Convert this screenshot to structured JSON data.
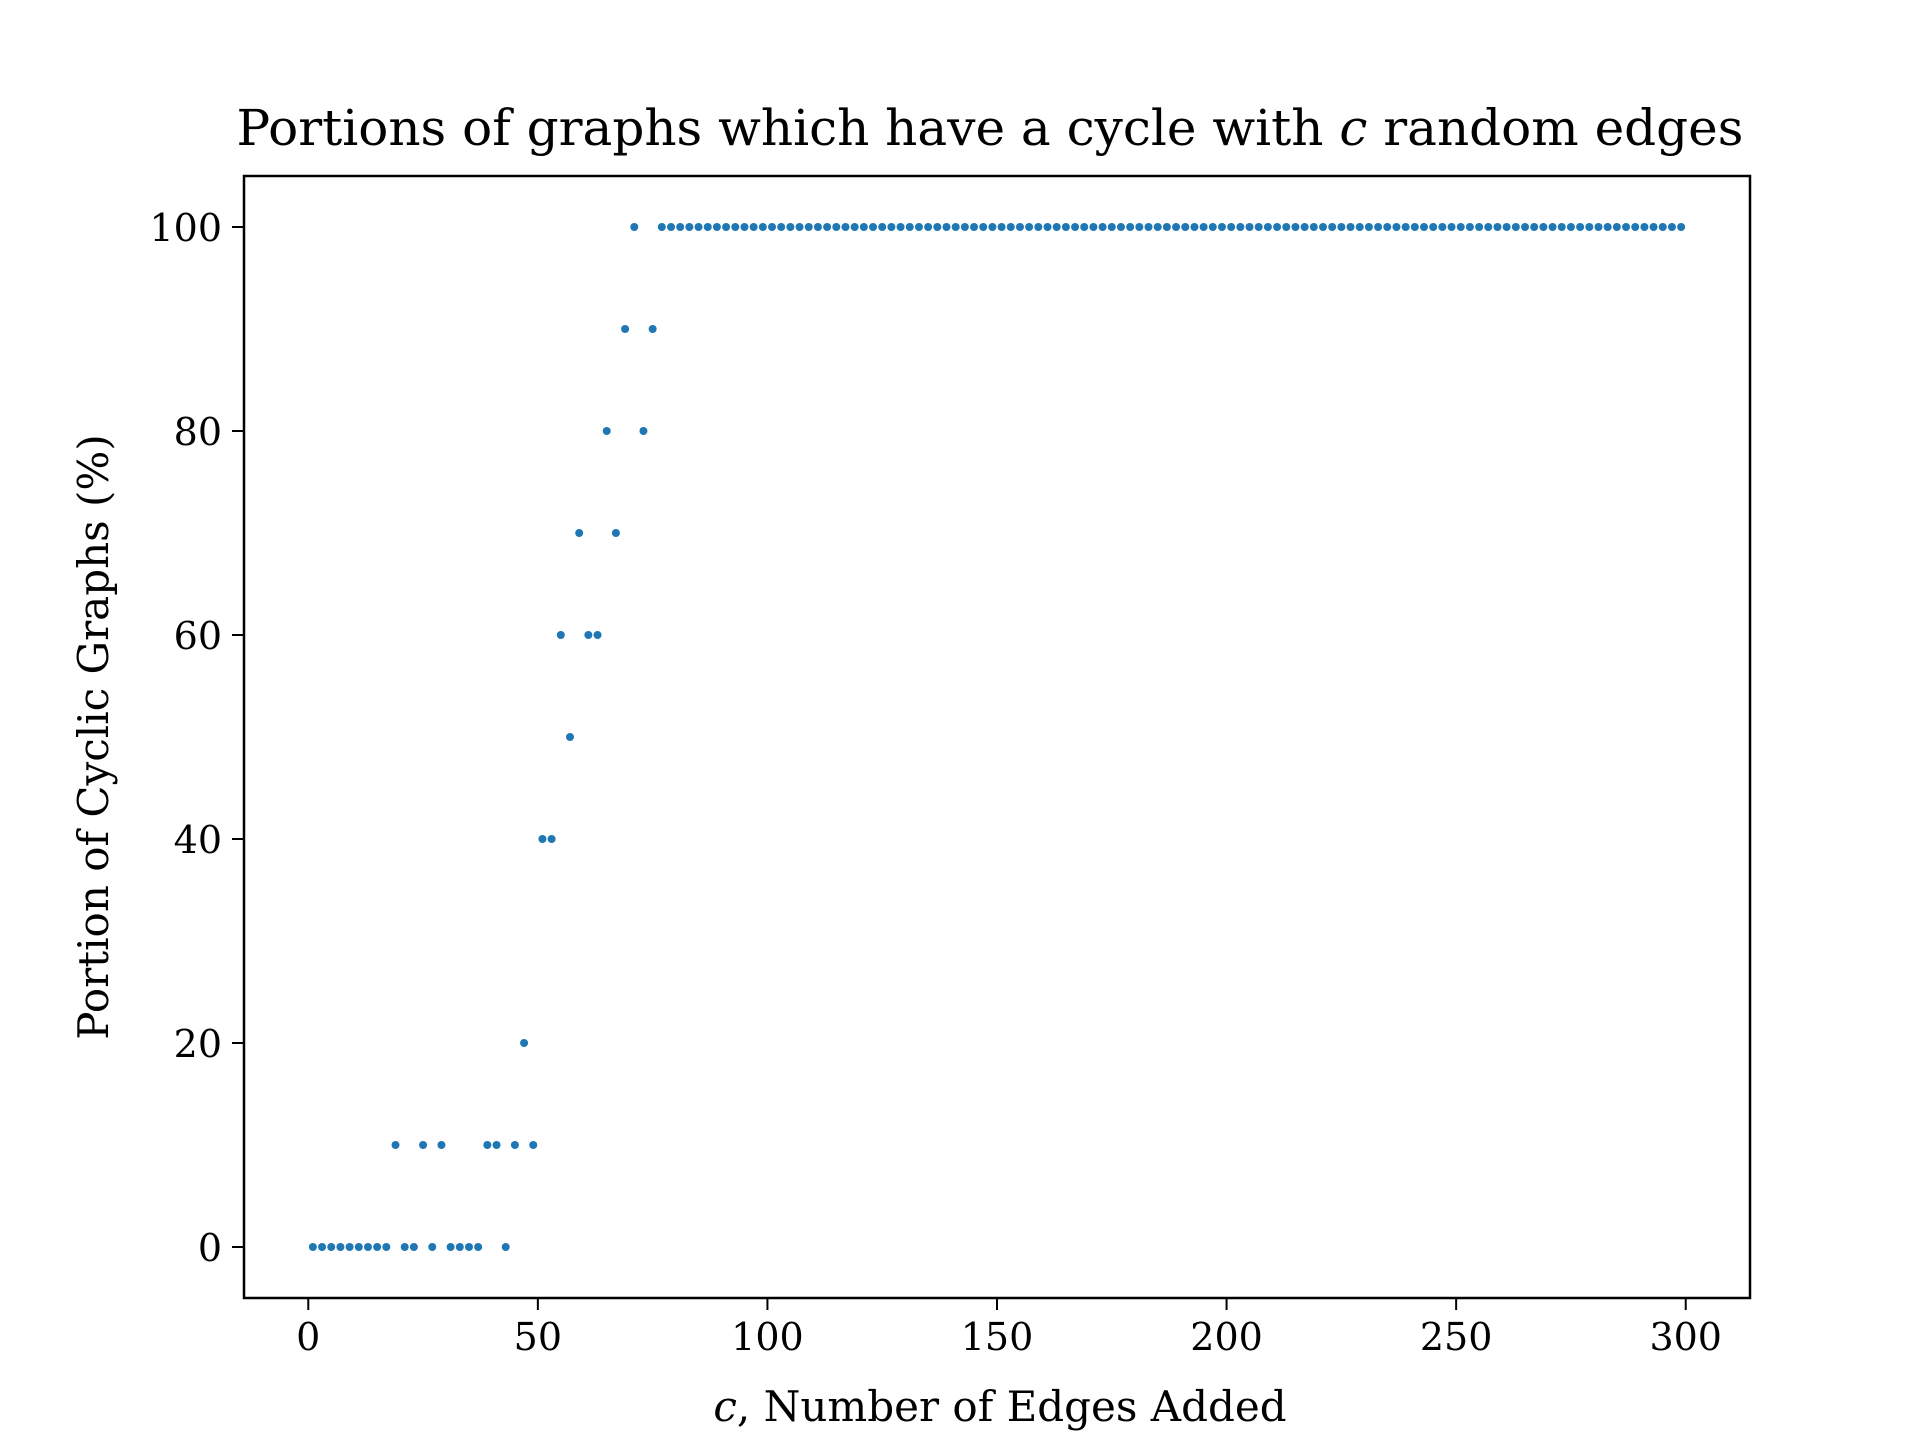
{
  "chart_data": {
    "type": "scatter",
    "title": "Portions of graphs which have a cycle with c random edges",
    "title_prefix": "Portions of graphs which have a cycle with ",
    "title_var": "c",
    "title_suffix": " random edges",
    "xlabel_var": "c",
    "xlabel_rest": ", Number of Edges Added",
    "ylabel": "Portion of Cyclic Graphs (%)",
    "xlim": [
      -14,
      314
    ],
    "ylim": [
      -5,
      105
    ],
    "xticks": [
      0,
      50,
      100,
      150,
      200,
      250,
      300
    ],
    "xtick_labels": [
      "0",
      "50",
      "100",
      "150",
      "200",
      "250",
      "300"
    ],
    "yticks": [
      0,
      20,
      40,
      60,
      80,
      100
    ],
    "ytick_labels": [
      "0",
      "20",
      "40",
      "60",
      "80",
      "100"
    ],
    "grid": false,
    "marker_color": "#1f77b4",
    "series": [
      {
        "name": "cyclic portion",
        "x": [
          1,
          3,
          5,
          7,
          9,
          11,
          13,
          15,
          17,
          19,
          21,
          23,
          25,
          27,
          29,
          31,
          33,
          35,
          37,
          39,
          41,
          43,
          45,
          47,
          49,
          51,
          53,
          55,
          57,
          59,
          61,
          63,
          65,
          67,
          69,
          71,
          73,
          75,
          77,
          79,
          81,
          83,
          85,
          87,
          89,
          91,
          93,
          95,
          97,
          99,
          101,
          103,
          105,
          107,
          109,
          111,
          113,
          115,
          117,
          119,
          121,
          123,
          125,
          127,
          129,
          131,
          133,
          135,
          137,
          139,
          141,
          143,
          145,
          147,
          149,
          151,
          153,
          155,
          157,
          159,
          161,
          163,
          165,
          167,
          169,
          171,
          173,
          175,
          177,
          179,
          181,
          183,
          185,
          187,
          189,
          191,
          193,
          195,
          197,
          199,
          201,
          203,
          205,
          207,
          209,
          211,
          213,
          215,
          217,
          219,
          221,
          223,
          225,
          227,
          229,
          231,
          233,
          235,
          237,
          239,
          241,
          243,
          245,
          247,
          249,
          251,
          253,
          255,
          257,
          259,
          261,
          263,
          265,
          267,
          269,
          271,
          273,
          275,
          277,
          279,
          281,
          283,
          285,
          287,
          289,
          291,
          293,
          295,
          297,
          299
        ],
        "y": [
          0,
          0,
          0,
          0,
          0,
          0,
          0,
          0,
          0,
          10,
          0,
          0,
          10,
          0,
          10,
          0,
          0,
          0,
          0,
          10,
          10,
          0,
          10,
          20,
          10,
          40,
          40,
          60,
          50,
          70,
          60,
          60,
          80,
          70,
          90,
          100,
          80,
          90,
          100,
          100,
          100,
          100,
          100,
          100,
          100,
          100,
          100,
          100,
          100,
          100,
          100,
          100,
          100,
          100,
          100,
          100,
          100,
          100,
          100,
          100,
          100,
          100,
          100,
          100,
          100,
          100,
          100,
          100,
          100,
          100,
          100,
          100,
          100,
          100,
          100,
          100,
          100,
          100,
          100,
          100,
          100,
          100,
          100,
          100,
          100,
          100,
          100,
          100,
          100,
          100,
          100,
          100,
          100,
          100,
          100,
          100,
          100,
          100,
          100,
          100,
          100,
          100,
          100,
          100,
          100,
          100,
          100,
          100,
          100,
          100,
          100,
          100,
          100,
          100,
          100,
          100,
          100,
          100,
          100,
          100,
          100,
          100,
          100,
          100,
          100,
          100,
          100,
          100,
          100,
          100,
          100,
          100,
          100,
          100,
          100,
          100,
          100,
          100,
          100,
          100,
          100,
          100,
          100,
          100,
          100,
          100,
          100,
          100,
          100,
          100
        ]
      }
    ]
  }
}
